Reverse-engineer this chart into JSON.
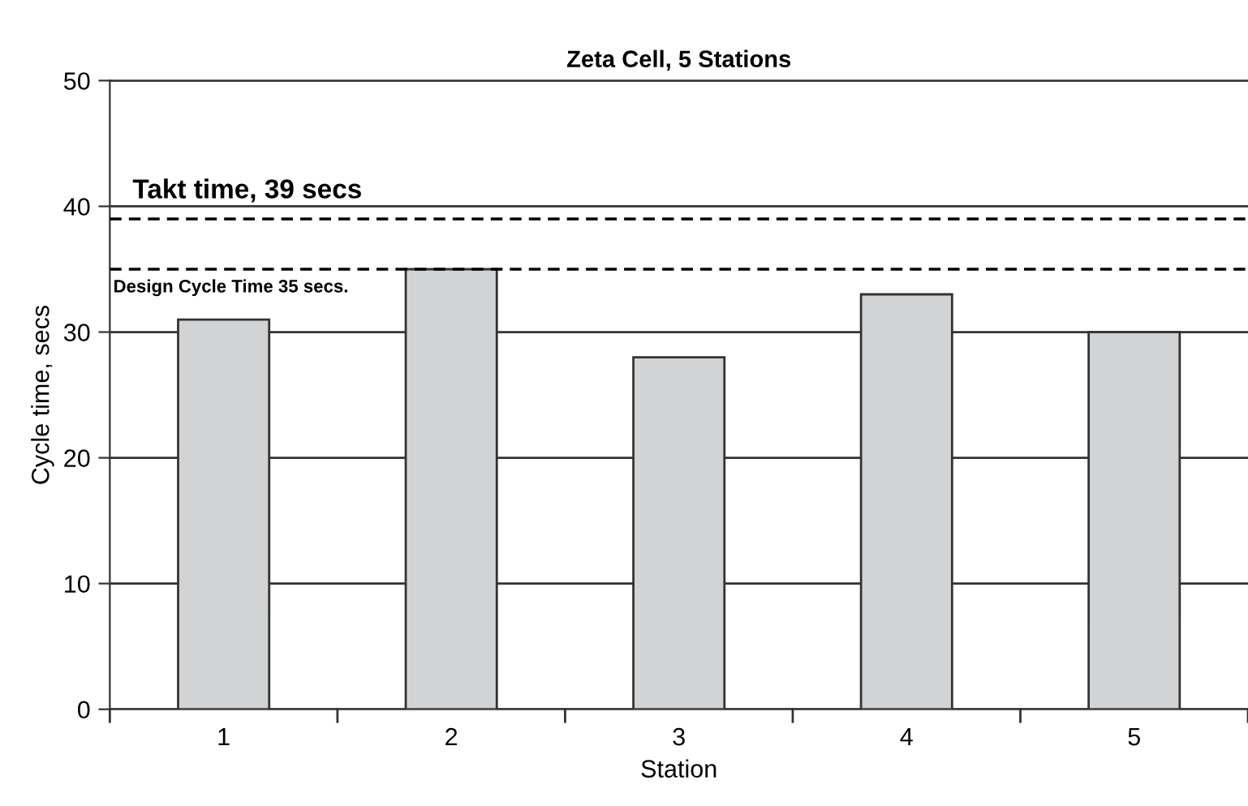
{
  "chart_data": {
    "type": "bar",
    "title": "Zeta Cell, 5 Stations",
    "xlabel": "Station",
    "ylabel": "Cycle time, secs",
    "categories": [
      "1",
      "2",
      "3",
      "4",
      "5"
    ],
    "values": [
      31,
      35,
      28,
      33,
      30
    ],
    "color": "#d1d3d4",
    "ylim": [
      0,
      50
    ],
    "yticks": [
      0,
      10,
      20,
      30,
      40,
      50
    ],
    "grid": "y",
    "ref_lines": [
      {
        "axis": "y",
        "value": 39,
        "label": "Takt time, 39 secs",
        "line_style": "dashed",
        "color": "#000000"
      },
      {
        "axis": "y",
        "value": 35,
        "label": "Design Cycle Time 35 secs.",
        "line_style": "dashed",
        "color": "#000000"
      }
    ]
  }
}
